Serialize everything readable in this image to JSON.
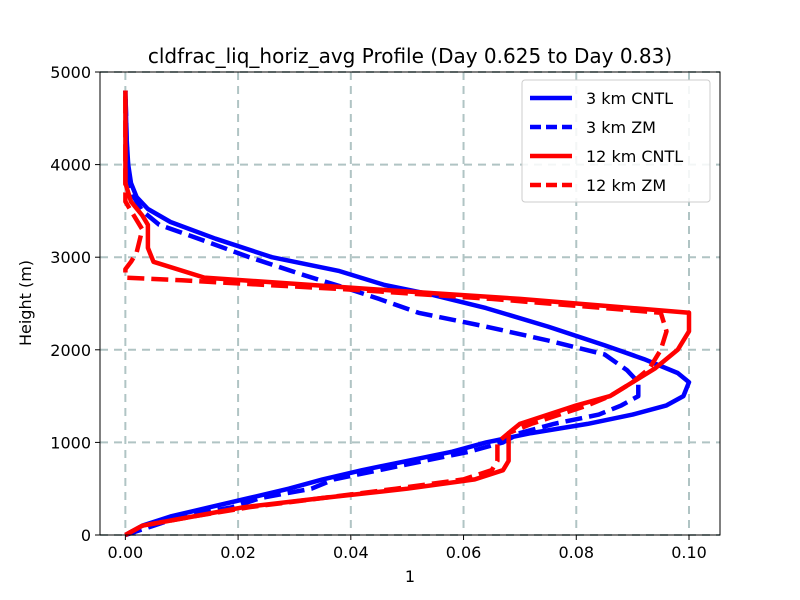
{
  "chart_data": {
    "type": "line",
    "orientation": "profile (x = value, y = height)",
    "title": "cldfrac_liq_horiz_avg Profile (Day 0.625 to Day 0.83)",
    "xlabel": "1",
    "ylabel": "Height (m)",
    "xlim": [
      -0.0045,
      0.1055
    ],
    "ylim": [
      0,
      5000
    ],
    "xticks": [
      0.0,
      0.02,
      0.04,
      0.06,
      0.08,
      0.1
    ],
    "xtick_labels": [
      "0.00",
      "0.02",
      "0.04",
      "0.06",
      "0.08",
      "0.10"
    ],
    "yticks": [
      0,
      1000,
      2000,
      3000,
      4000,
      5000
    ],
    "ytick_labels": [
      "0",
      "1000",
      "2000",
      "3000",
      "4000",
      "5000"
    ],
    "grid": true,
    "legend_position": "upper-right",
    "series": [
      {
        "name": "3 km CNTL",
        "color": "#0000ff",
        "linestyle": "solid",
        "points": [
          [
            0.0,
            0
          ],
          [
            0.003,
            100
          ],
          [
            0.008,
            200
          ],
          [
            0.015,
            300
          ],
          [
            0.022,
            400
          ],
          [
            0.029,
            500
          ],
          [
            0.035,
            600
          ],
          [
            0.042,
            700
          ],
          [
            0.05,
            800
          ],
          [
            0.058,
            900
          ],
          [
            0.064,
            1000
          ],
          [
            0.072,
            1100
          ],
          [
            0.082,
            1200
          ],
          [
            0.09,
            1300
          ],
          [
            0.096,
            1400
          ],
          [
            0.099,
            1500
          ],
          [
            0.1,
            1650
          ],
          [
            0.098,
            1750
          ],
          [
            0.092,
            1900
          ],
          [
            0.085,
            2050
          ],
          [
            0.075,
            2250
          ],
          [
            0.064,
            2450
          ],
          [
            0.054,
            2600
          ],
          [
            0.046,
            2700
          ],
          [
            0.038,
            2850
          ],
          [
            0.026,
            3000
          ],
          [
            0.016,
            3200
          ],
          [
            0.008,
            3380
          ],
          [
            0.004,
            3520
          ],
          [
            0.002,
            3650
          ],
          [
            0.001,
            3800
          ],
          [
            0.0005,
            4000
          ],
          [
            0.0002,
            4300
          ],
          [
            0.0,
            4800
          ]
        ]
      },
      {
        "name": "3 km ZM",
        "color": "#0000ff",
        "linestyle": "dashed",
        "points": [
          [
            0.0,
            0
          ],
          [
            0.005,
            100
          ],
          [
            0.01,
            200
          ],
          [
            0.019,
            300
          ],
          [
            0.024,
            400
          ],
          [
            0.033,
            500
          ],
          [
            0.037,
            600
          ],
          [
            0.045,
            700
          ],
          [
            0.053,
            800
          ],
          [
            0.061,
            900
          ],
          [
            0.067,
            1000
          ],
          [
            0.07,
            1100
          ],
          [
            0.076,
            1200
          ],
          [
            0.084,
            1300
          ],
          [
            0.088,
            1400
          ],
          [
            0.091,
            1500
          ],
          [
            0.091,
            1650
          ],
          [
            0.089,
            1780
          ],
          [
            0.085,
            1950
          ],
          [
            0.075,
            2100
          ],
          [
            0.064,
            2250
          ],
          [
            0.052,
            2400
          ],
          [
            0.045,
            2550
          ],
          [
            0.04,
            2650
          ],
          [
            0.032,
            2800
          ],
          [
            0.022,
            3000
          ],
          [
            0.013,
            3200
          ],
          [
            0.006,
            3350
          ],
          [
            0.003,
            3500
          ],
          [
            0.0015,
            3650
          ],
          [
            0.0008,
            3800
          ],
          [
            0.0003,
            4100
          ],
          [
            0.0,
            4800
          ]
        ]
      },
      {
        "name": "12 km CNTL",
        "color": "#ff0000",
        "linestyle": "solid",
        "points": [
          [
            0.0,
            0
          ],
          [
            0.003,
            100
          ],
          [
            0.012,
            200
          ],
          [
            0.021,
            300
          ],
          [
            0.035,
            400
          ],
          [
            0.05,
            500
          ],
          [
            0.062,
            600
          ],
          [
            0.067,
            700
          ],
          [
            0.068,
            800
          ],
          [
            0.068,
            900
          ],
          [
            0.068,
            1000
          ],
          [
            0.068,
            1100
          ],
          [
            0.07,
            1200
          ],
          [
            0.075,
            1300
          ],
          [
            0.08,
            1400
          ],
          [
            0.086,
            1500
          ],
          [
            0.09,
            1650
          ],
          [
            0.094,
            1800
          ],
          [
            0.098,
            2000
          ],
          [
            0.1,
            2200
          ],
          [
            0.1,
            2400
          ],
          [
            0.09,
            2450
          ],
          [
            0.07,
            2550
          ],
          [
            0.045,
            2650
          ],
          [
            0.014,
            2780
          ],
          [
            0.005,
            2950
          ],
          [
            0.004,
            3100
          ],
          [
            0.004,
            3350
          ],
          [
            0.003,
            3450
          ],
          [
            0.001,
            3600
          ],
          [
            0.0,
            3800
          ],
          [
            0.0,
            4200
          ],
          [
            0.0,
            4800
          ]
        ]
      },
      {
        "name": "12 km ZM",
        "color": "#ff0000",
        "linestyle": "dashed",
        "points": [
          [
            0.0,
            0
          ],
          [
            0.003,
            100
          ],
          [
            0.012,
            200
          ],
          [
            0.022,
            300
          ],
          [
            0.035,
            400
          ],
          [
            0.048,
            500
          ],
          [
            0.06,
            600
          ],
          [
            0.065,
            700
          ],
          [
            0.066,
            800
          ],
          [
            0.066,
            900
          ],
          [
            0.066,
            1000
          ],
          [
            0.068,
            1100
          ],
          [
            0.072,
            1200
          ],
          [
            0.077,
            1300
          ],
          [
            0.082,
            1400
          ],
          [
            0.086,
            1500
          ],
          [
            0.09,
            1650
          ],
          [
            0.093,
            1800
          ],
          [
            0.095,
            2000
          ],
          [
            0.096,
            2200
          ],
          [
            0.095,
            2400
          ],
          [
            0.085,
            2450
          ],
          [
            0.065,
            2550
          ],
          [
            0.04,
            2650
          ],
          [
            0.01,
            2750
          ],
          [
            0.0,
            2780
          ],
          [
            0.0,
            2870
          ],
          [
            0.001,
            2950
          ],
          [
            0.002,
            3050
          ],
          [
            0.003,
            3300
          ],
          [
            0.0,
            3600
          ],
          [
            0.0,
            3800
          ],
          [
            0.0,
            4000
          ],
          [
            0.0,
            4400
          ],
          [
            0.0,
            4800
          ]
        ]
      }
    ]
  }
}
